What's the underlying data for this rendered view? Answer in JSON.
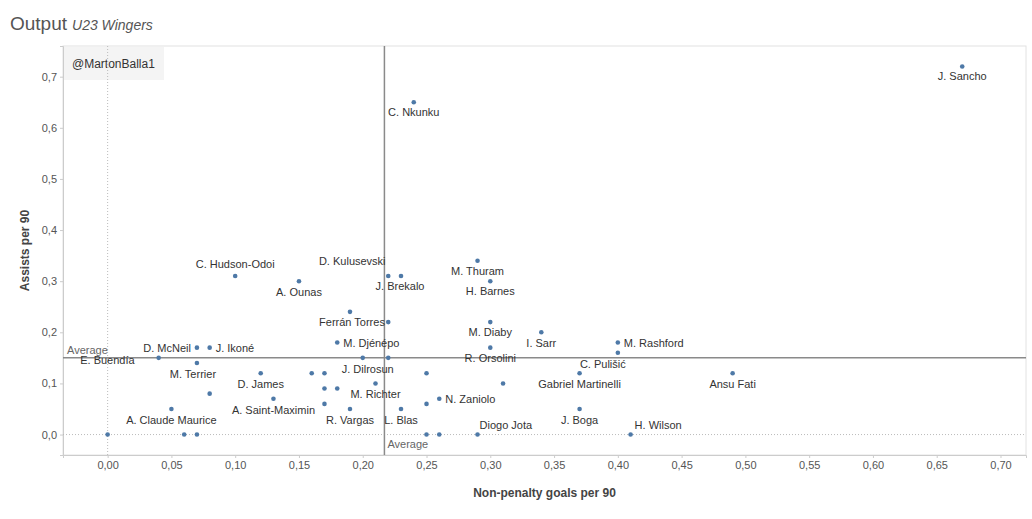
{
  "chart_data": {
    "type": "scatter",
    "title": "Output",
    "subtitle": "U23 Wingers",
    "annotation": "@MartonBalla1",
    "x_label": "Non-penalty goals per 90",
    "y_label": "Assists per 90",
    "color": "#4e79a7",
    "marker": "circle",
    "grid": false,
    "xlim": [
      -0.035,
      0.72
    ],
    "ylim": [
      -0.04,
      0.76
    ],
    "xticks": [
      {
        "value": 0,
        "label": "0,00"
      },
      {
        "value": 0.05,
        "label": "0,05"
      },
      {
        "value": 0.1,
        "label": "0,10"
      },
      {
        "value": 0.15,
        "label": "0,15"
      },
      {
        "value": 0.2,
        "label": "0,20"
      },
      {
        "value": 0.25,
        "label": "0,25"
      },
      {
        "value": 0.3,
        "label": "0,30"
      },
      {
        "value": 0.35,
        "label": "0,35"
      },
      {
        "value": 0.4,
        "label": "0,40"
      },
      {
        "value": 0.45,
        "label": "0,45"
      },
      {
        "value": 0.5,
        "label": "0,50"
      },
      {
        "value": 0.55,
        "label": "0,55"
      },
      {
        "value": 0.6,
        "label": "0,60"
      },
      {
        "value": 0.65,
        "label": "0,65"
      },
      {
        "value": 0.7,
        "label": "0,70"
      }
    ],
    "yticks": [
      {
        "value": 0,
        "label": "0,0"
      },
      {
        "value": 0.1,
        "label": "0,1"
      },
      {
        "value": 0.2,
        "label": "0,2"
      },
      {
        "value": 0.3,
        "label": "0,3"
      },
      {
        "value": 0.4,
        "label": "0,4"
      },
      {
        "value": 0.5,
        "label": "0,5"
      },
      {
        "value": 0.6,
        "label": "0,6"
      },
      {
        "value": 0.7,
        "label": "0,7"
      }
    ],
    "reference_lines": [
      {
        "axis": "x",
        "value": 0.217,
        "label": "Average"
      },
      {
        "axis": "y",
        "value": 0.15,
        "label": "Average"
      }
    ],
    "x": [
      0.67,
      0.24,
      0.1,
      0.15,
      0.22,
      0.23,
      0.29,
      0.3,
      0.19,
      0.22,
      0.3,
      0.34,
      0.4,
      0.4,
      0.3,
      0.18,
      0.2,
      0.22,
      0.07,
      0.08,
      0.04,
      0.07,
      0.08,
      0.12,
      0.16,
      0.17,
      0.17,
      0.18,
      0.21,
      0.25,
      0.31,
      0.37,
      0.49,
      0.13,
      0.17,
      0.19,
      0.23,
      0.26,
      0.25,
      0.05,
      0.06,
      0.07,
      0.0,
      0.25,
      0.26,
      0.29,
      0.37,
      0.41
    ],
    "values": [
      0.72,
      0.65,
      0.31,
      0.3,
      0.31,
      0.31,
      0.34,
      0.3,
      0.24,
      0.22,
      0.22,
      0.2,
      0.18,
      0.16,
      0.17,
      0.18,
      0.15,
      0.15,
      0.17,
      0.17,
      0.15,
      0.14,
      0.08,
      0.12,
      0.12,
      0.12,
      0.09,
      0.09,
      0.1,
      0.12,
      0.1,
      0.12,
      0.12,
      0.07,
      0.06,
      0.05,
      0.05,
      0.07,
      0.06,
      0.05,
      0.0,
      0.0,
      0.0,
      0.0,
      0.0,
      0.0,
      0.05,
      0.0
    ],
    "labels": [
      "J. Sancho",
      "C. Nkunku",
      "C. Hudson-Odoi",
      "A. Ounas",
      "D. Kulusevski",
      "J. Brekalo",
      "M. Thuram",
      "H. Barnes",
      "Ferrán Torres",
      null,
      "M. Diaby",
      "I. Sarr",
      "M. Rashford",
      "C. Pulišić",
      "R. Orsolini",
      "M. Djénépo",
      "J. Dilrosun",
      null,
      "D. McNeil",
      "J. Ikoné",
      "E. Buendía",
      "M. Terrier",
      null,
      "D. James",
      null,
      null,
      null,
      null,
      "M. Richter",
      null,
      null,
      "Gabriel Martinelli",
      "Ansu Fati",
      "A. Saint-Maximin",
      null,
      "R. Vargas",
      "L. Blas",
      "N. Zaniolo",
      null,
      "A. Claude Maurice",
      null,
      null,
      null,
      null,
      null,
      "Diogo Jota",
      "J. Boga",
      "H. Wilson"
    ]
  }
}
